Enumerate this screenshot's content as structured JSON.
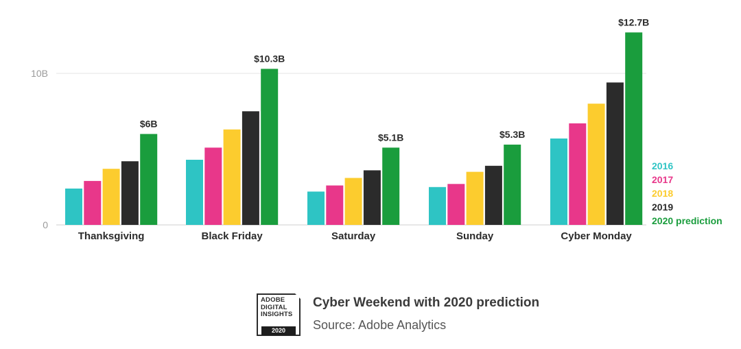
{
  "chart_data": {
    "type": "bar",
    "categories": [
      "Thanksgiving",
      "Black Friday",
      "Saturday",
      "Sunday",
      "Cyber Monday"
    ],
    "series": [
      {
        "name": "2016",
        "color": "#2ec4c4",
        "values": [
          2.4,
          4.3,
          2.2,
          2.5,
          5.7
        ]
      },
      {
        "name": "2017",
        "color": "#e8378a",
        "values": [
          2.9,
          5.1,
          2.6,
          2.7,
          6.7
        ]
      },
      {
        "name": "2018",
        "color": "#fccc2e",
        "values": [
          3.7,
          6.3,
          3.1,
          3.5,
          8.0
        ]
      },
      {
        "name": "2019",
        "color": "#2b2b2b",
        "values": [
          4.2,
          7.5,
          3.6,
          3.9,
          9.4
        ]
      },
      {
        "name": "2020 prediction",
        "color": "#1a9d3d",
        "values": [
          6.0,
          10.3,
          5.1,
          5.3,
          12.7
        ]
      }
    ],
    "data_labels": [
      "$6B",
      "$10.3B",
      "$5.1B",
      "$5.3B",
      "$12.7B"
    ],
    "y_ticks": [
      {
        "value": 0,
        "label": "0"
      },
      {
        "value": 10,
        "label": "10B"
      }
    ],
    "ylim": [
      0,
      14
    ],
    "grid": true,
    "legend_position": "right",
    "title": "Cyber Weekend with 2020 prediction",
    "source": "Source: Adobe Analytics"
  },
  "logo": {
    "lines": [
      "ADOBE",
      "DIGITAL",
      "INSIGHTS"
    ],
    "year": "2020"
  },
  "colors": {
    "gridline": "#e3e3e3",
    "baseline": "#cfcfcf"
  }
}
